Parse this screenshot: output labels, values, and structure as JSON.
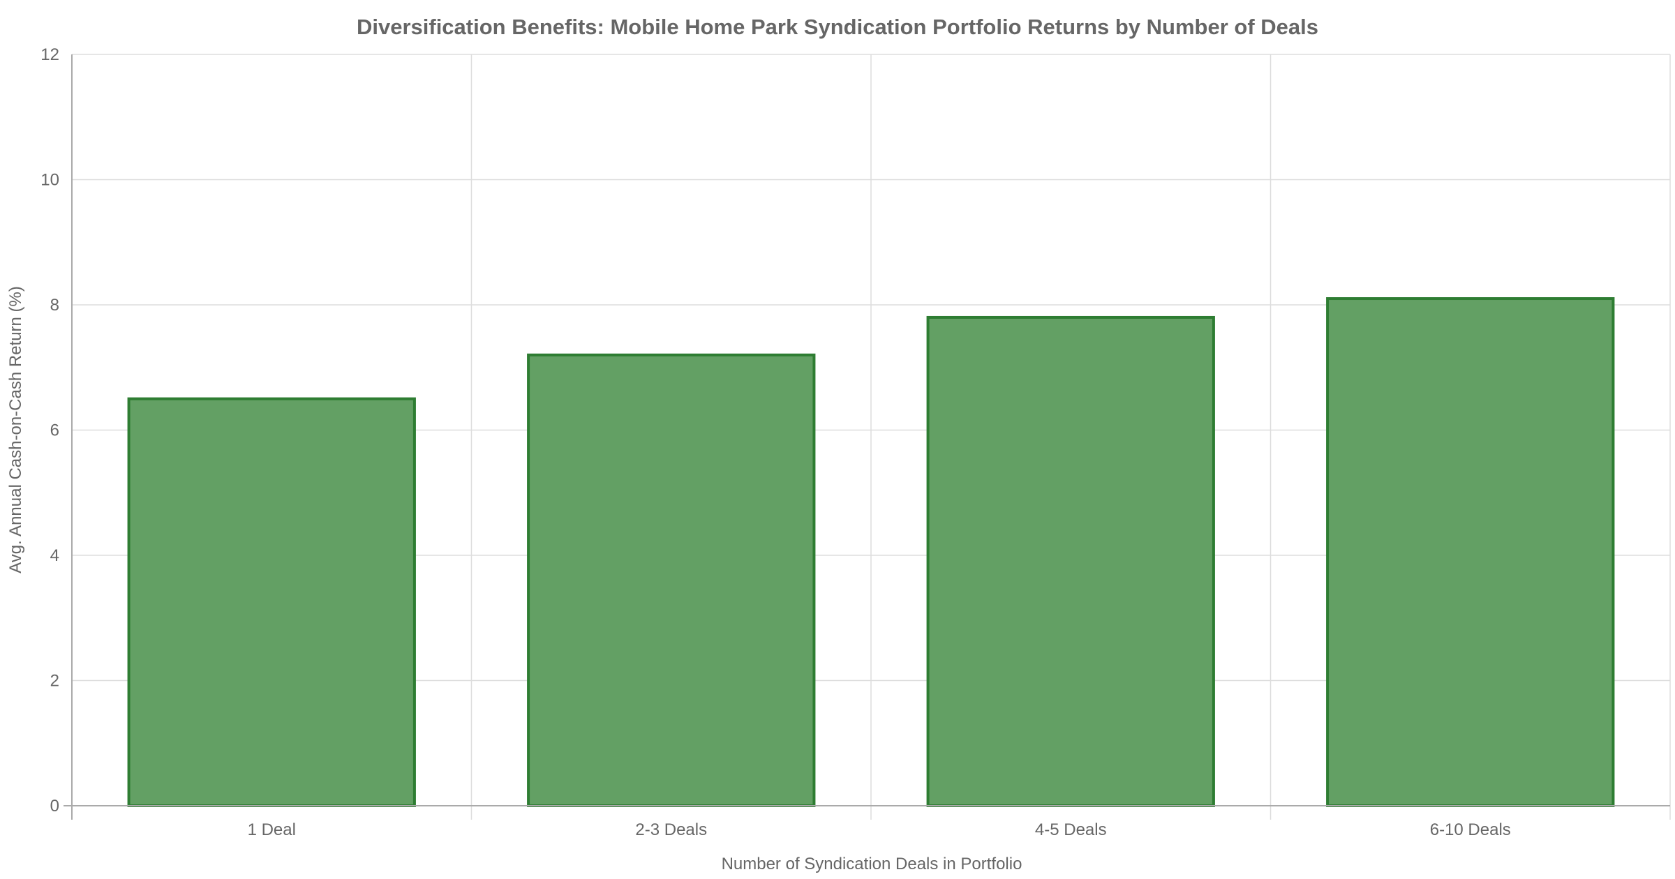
{
  "chart_data": {
    "type": "bar",
    "title": "Diversification Benefits: Mobile Home Park Syndication Portfolio Returns by Number of Deals",
    "xlabel": "Number of Syndication Deals in Portfolio",
    "ylabel": "Avg. Annual Cash-on-Cash Return (%)",
    "categories": [
      "1 Deal",
      "2-3 Deals",
      "4-5 Deals",
      "6-10 Deals"
    ],
    "values": [
      6.5,
      7.2,
      7.8,
      8.1
    ],
    "ylim": [
      0,
      12
    ],
    "yticks": [
      "0",
      "2",
      "4",
      "6",
      "8",
      "10",
      "12"
    ],
    "grid": true,
    "colors": {
      "bar_fill": "#63a064",
      "bar_stroke": "#2e7d32",
      "grid": "#dddddd",
      "text": "#666666"
    }
  }
}
